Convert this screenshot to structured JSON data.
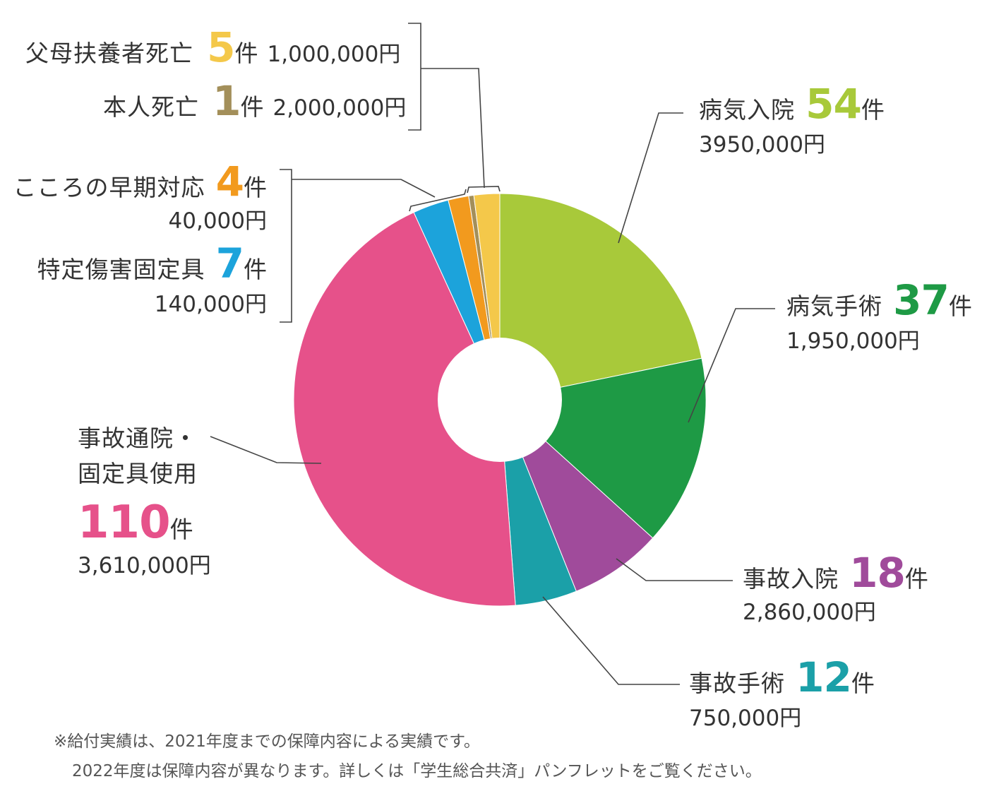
{
  "chart_data": {
    "type": "donut",
    "title": "",
    "unit_count": "件",
    "slices": [
      {
        "name": "病気入院",
        "count": "54",
        "amount": "3950,000円",
        "value": 54,
        "color": "#a8c93a"
      },
      {
        "name": "病気手術",
        "count": "37",
        "amount": "1,950,000円",
        "value": 37,
        "color": "#1e9a45"
      },
      {
        "name": "事故入院",
        "count": "18",
        "amount": "2,860,000円",
        "value": 18,
        "color": "#a04b9b"
      },
      {
        "name": "事故手術",
        "count": "12",
        "amount": "750,000円",
        "value": 12,
        "color": "#1ba0a8"
      },
      {
        "name": "事故通院・固定具使用",
        "name_line1": "事故通院・",
        "name_line2": "固定具使用",
        "count": "110",
        "amount": "3,610,000円",
        "value": 110,
        "color": "#e6518a"
      },
      {
        "name": "特定傷害固定具",
        "count": "7",
        "amount": "140,000円",
        "value": 7,
        "color": "#1ca3db"
      },
      {
        "name": "こころの早期対応",
        "count": "4",
        "amount": "40,000円",
        "value": 4,
        "color": "#f29a1e"
      },
      {
        "name": "本人死亡",
        "count": "1",
        "amount": "2,000,000円",
        "value": 1,
        "color": "#a38f5a"
      },
      {
        "name": "父母扶養者死亡",
        "count": "5",
        "amount": "1,000,000円",
        "value": 5,
        "color": "#f4c84a"
      }
    ]
  },
  "notes": {
    "line1": "※給付実績は、2021年度までの保障内容による実績です。",
    "line2": "2022年度は保障内容が異なります。詳しくは「学生総合共済」パンフレットをご覧ください。"
  }
}
